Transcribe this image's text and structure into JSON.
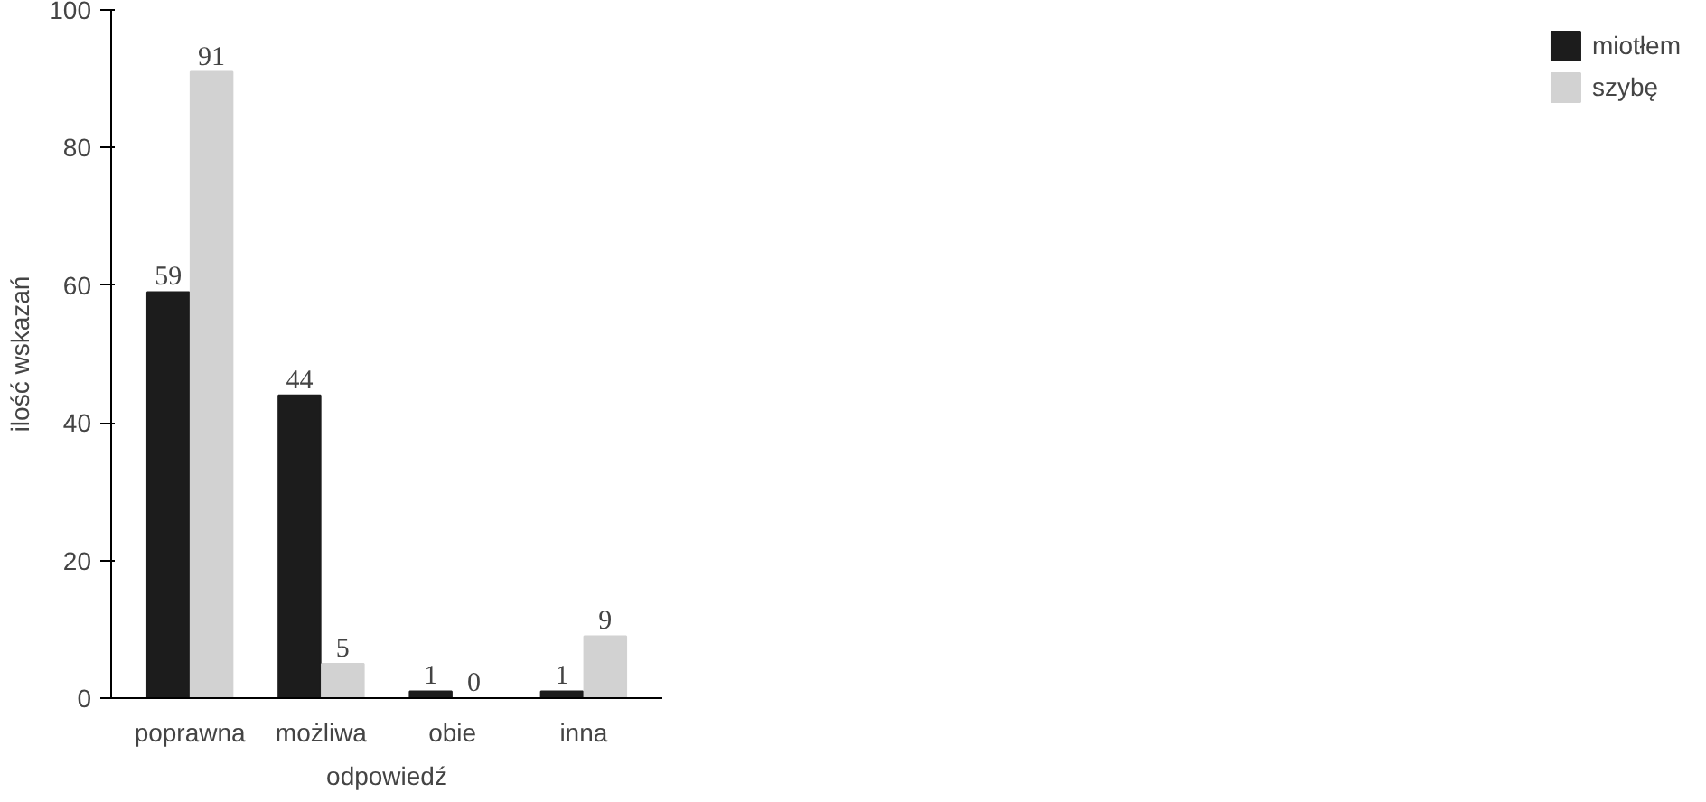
{
  "chart_data": {
    "type": "bar",
    "xlabel": "odpowiedź",
    "ylabel": "ilość wskazań",
    "categories": [
      "poprawna",
      "możliwa",
      "obie",
      "inna"
    ],
    "series": [
      {
        "name": "miotłem",
        "color": "#1c1c1c",
        "values": [
          59,
          44,
          1,
          1
        ]
      },
      {
        "name": "szybę",
        "color": "#d2d2d2",
        "values": [
          91,
          5,
          0,
          9
        ]
      }
    ],
    "ylim": [
      0,
      100
    ],
    "yticks": [
      0,
      20,
      40,
      60,
      80,
      100
    ],
    "grid": false,
    "legend": "right",
    "data_labels": true
  }
}
